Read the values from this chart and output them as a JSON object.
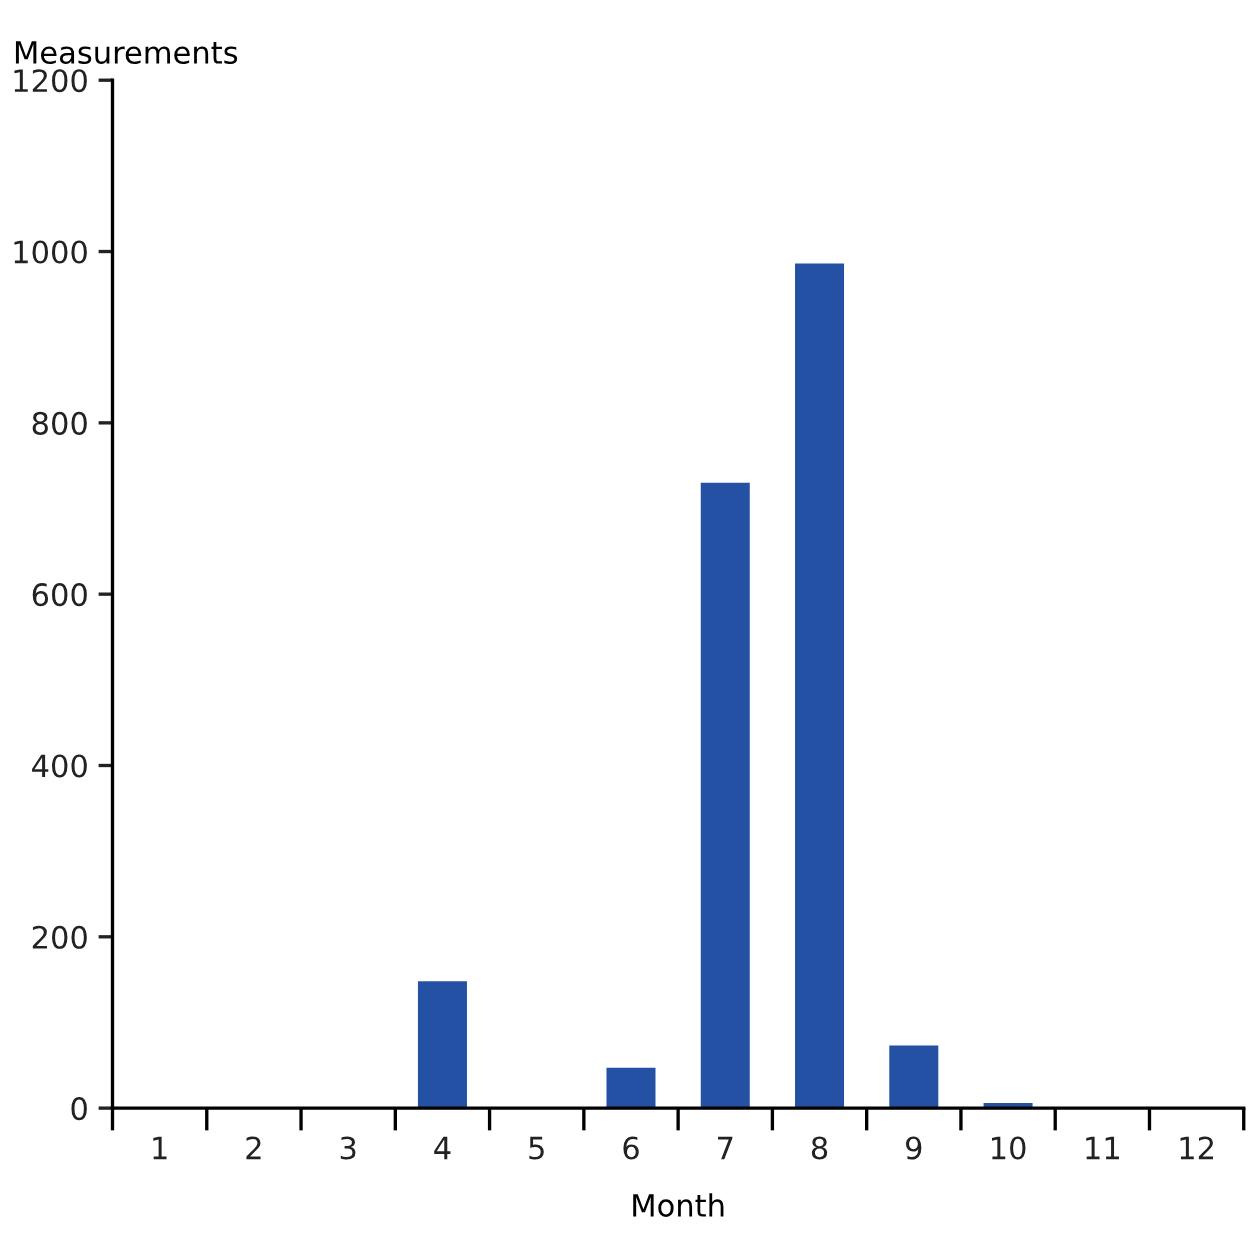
{
  "chart_data": {
    "type": "bar",
    "ylabel": "Measurements",
    "xlabel": "Month",
    "categories": [
      "1",
      "2",
      "3",
      "4",
      "5",
      "6",
      "7",
      "8",
      "9",
      "10",
      "11",
      "12"
    ],
    "values": [
      0,
      0,
      0,
      148,
      0,
      47,
      730,
      986,
      73,
      6,
      0,
      0
    ],
    "color": "#2451a4",
    "ylim": [
      0,
      1200
    ],
    "yticks": [
      0,
      200,
      400,
      600,
      800,
      1000,
      1200
    ],
    "grid": false,
    "legend": false
  }
}
